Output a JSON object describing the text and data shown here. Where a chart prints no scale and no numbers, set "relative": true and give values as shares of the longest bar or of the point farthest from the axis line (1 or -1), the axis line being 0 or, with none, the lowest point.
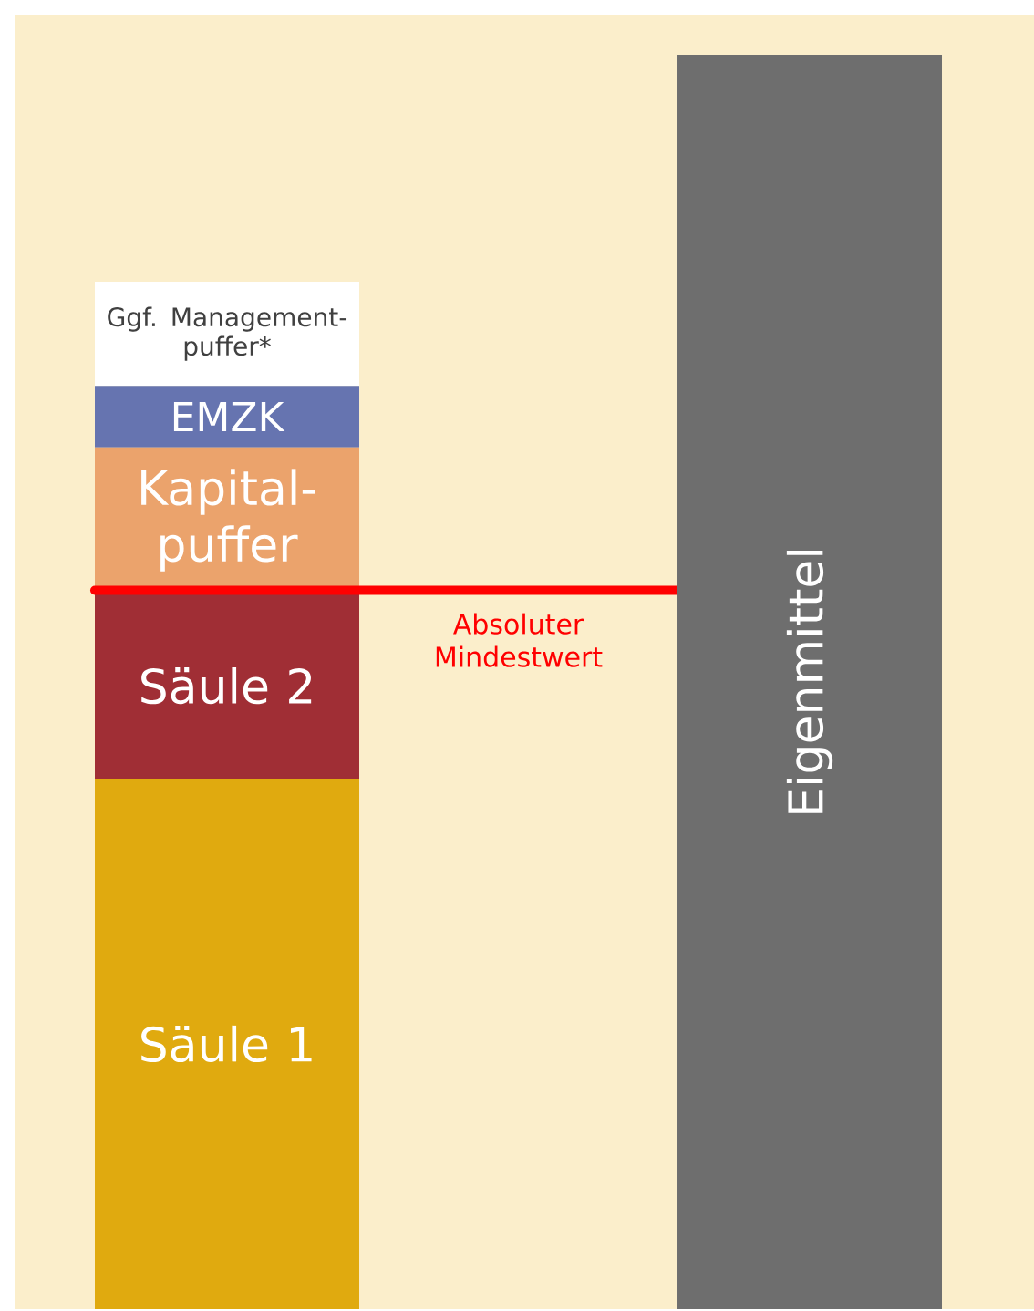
{
  "chart_data": {
    "type": "bar",
    "stacked": true,
    "relative": true,
    "categories": [
      null,
      null
    ],
    "series": [
      {
        "name": "Säule 1",
        "color": "#e0aa0f",
        "values": [
          0.423,
          null
        ]
      },
      {
        "name": "Säule 2",
        "color": "#a02e35",
        "values": [
          0.148,
          null
        ]
      },
      {
        "name": "Kapital-puffer",
        "color": "#eba36c",
        "values": [
          0.116,
          null
        ]
      },
      {
        "name": "EMZK",
        "color": "#6674b0",
        "values": [
          0.049,
          null
        ]
      },
      {
        "name": "Ggf. Management-puffer*",
        "color": "#ffffff",
        "values": [
          0.083,
          null
        ]
      },
      {
        "name": "Eigenmittel",
        "color": "#6e6e6e",
        "values": [
          null,
          1
        ]
      }
    ],
    "ref_lines": [
      {
        "axis": "y",
        "value": 0.573,
        "label": "Absoluter Mindestwert",
        "color": "#ff0000"
      }
    ]
  }
}
